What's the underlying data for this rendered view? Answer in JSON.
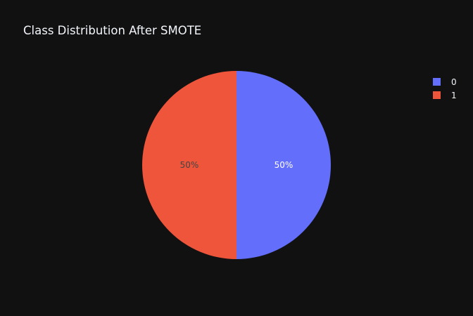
{
  "chart_data": {
    "type": "pie",
    "title": "Class Distribution After SMOTE",
    "categories": [
      "0",
      "1"
    ],
    "values": [
      50,
      50
    ],
    "labels": [
      "50%",
      "50%"
    ],
    "colors": [
      "#636efa",
      "#ef553b"
    ],
    "label_colors": [
      "#ffffff",
      "#444444"
    ],
    "legend_position": "top-right",
    "background": "#111111"
  }
}
